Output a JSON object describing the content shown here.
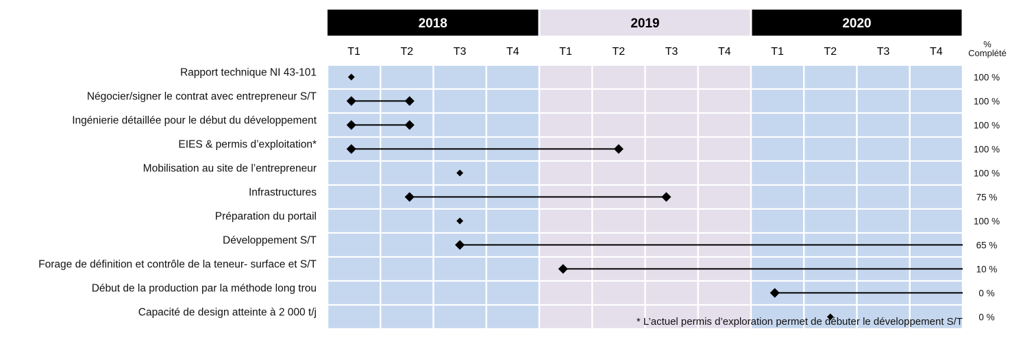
{
  "chart_data": {
    "type": "gantt",
    "years": [
      {
        "label": "2018",
        "header_bg": "#000000",
        "header_fg": "#ffffff",
        "cell_bg": "#c5d7ee"
      },
      {
        "label": "2019",
        "header_bg": "#e5dfec",
        "header_fg": "#000000",
        "cell_bg": "#e5dfec"
      },
      {
        "label": "2020",
        "header_bg": "#000000",
        "header_fg": "#ffffff",
        "cell_bg": "#c5d7ee"
      }
    ],
    "quarters": [
      "T1",
      "T2",
      "T3",
      "T4",
      "T1",
      "T2",
      "T3",
      "T4",
      "T1",
      "T2",
      "T3",
      "T4"
    ],
    "percent_header": [
      "%",
      "Complété"
    ],
    "tasks": [
      {
        "label": "Rapport technique NI 43-101",
        "start": 0.45,
        "end": null,
        "percent": "100 %"
      },
      {
        "label": "Négocier/signer le contrat avec entrepreneur S/T",
        "start": 0.45,
        "end": 1.55,
        "percent": "100 %"
      },
      {
        "label": "Ingénierie détaillée pour le début du développement",
        "start": 0.45,
        "end": 1.55,
        "percent": "100 %"
      },
      {
        "label": "EIES & permis d’exploitation*",
        "start": 0.45,
        "end": 5.5,
        "percent": "100 %"
      },
      {
        "label": "Mobilisation au site de l’entrepreneur",
        "start": 2.5,
        "end": null,
        "percent": "100 %"
      },
      {
        "label": "Infrastructures",
        "start": 1.55,
        "end": 6.4,
        "percent": "75 %"
      },
      {
        "label": "Préparation du portail",
        "start": 2.5,
        "end": null,
        "percent": "100 %"
      },
      {
        "label": "Développement S/T",
        "start": 2.5,
        "end": 12.0,
        "end_marker": false,
        "percent": "65 %"
      },
      {
        "label": "Forage de définition et contrôle de la teneur- surface et S/T",
        "start": 4.45,
        "end": 12.0,
        "end_marker": false,
        "percent": "10 %"
      },
      {
        "label": "Début de la production par la méthode long trou",
        "start": 8.45,
        "end": 12.0,
        "end_marker": false,
        "percent": "0 %"
      },
      {
        "label": "Capacité de design atteinte à 2 000 t/j",
        "start": 9.5,
        "end": null,
        "percent": "0 %"
      }
    ],
    "footnote": "* L’actuel permis d’exploration permet de débuter le développement S/T"
  }
}
